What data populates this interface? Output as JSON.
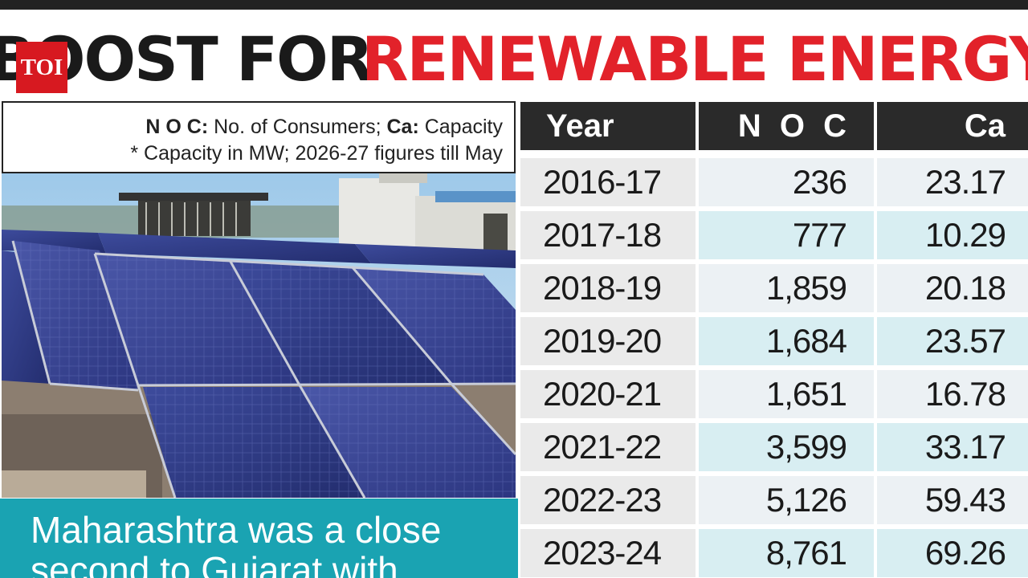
{
  "headline": {
    "black_part": "BOOST FOR",
    "red_part": "RENEWABLE ENERGY"
  },
  "logo": {
    "text": "TOI"
  },
  "legend": {
    "noc_abbr": "N O C:",
    "noc_desc": " No. of Consumers; ",
    "ca_abbr": "Ca:",
    "ca_desc": " Capacity",
    "note": "* Capacity in MW; 2026-27 figures till May"
  },
  "caption": {
    "line1": "Maharashtra was a close",
    "line2": "second to Gujarat with"
  },
  "table": {
    "headers": {
      "year": "Year",
      "noc": "N O C",
      "ca": "Ca"
    },
    "rows": [
      {
        "year": "2016-17",
        "noc": "236",
        "ca": "23.17"
      },
      {
        "year": "2017-18",
        "noc": "777",
        "ca": "10.29"
      },
      {
        "year": "2018-19",
        "noc": "1,859",
        "ca": "20.18"
      },
      {
        "year": "2019-20",
        "noc": "1,684",
        "ca": "23.57"
      },
      {
        "year": "2020-21",
        "noc": "1,651",
        "ca": "16.78"
      },
      {
        "year": "2021-22",
        "noc": "3,599",
        "ca": "33.17"
      },
      {
        "year": "2022-23",
        "noc": "5,126",
        "ca": "59.43"
      },
      {
        "year": "2023-24",
        "noc": "8,761",
        "ca": "69.26"
      }
    ]
  },
  "colors": {
    "headline_red": "#e2222a",
    "logo_red": "#d71920",
    "caption_teal": "#1aa3b2",
    "table_header": "#2a2a2a"
  }
}
